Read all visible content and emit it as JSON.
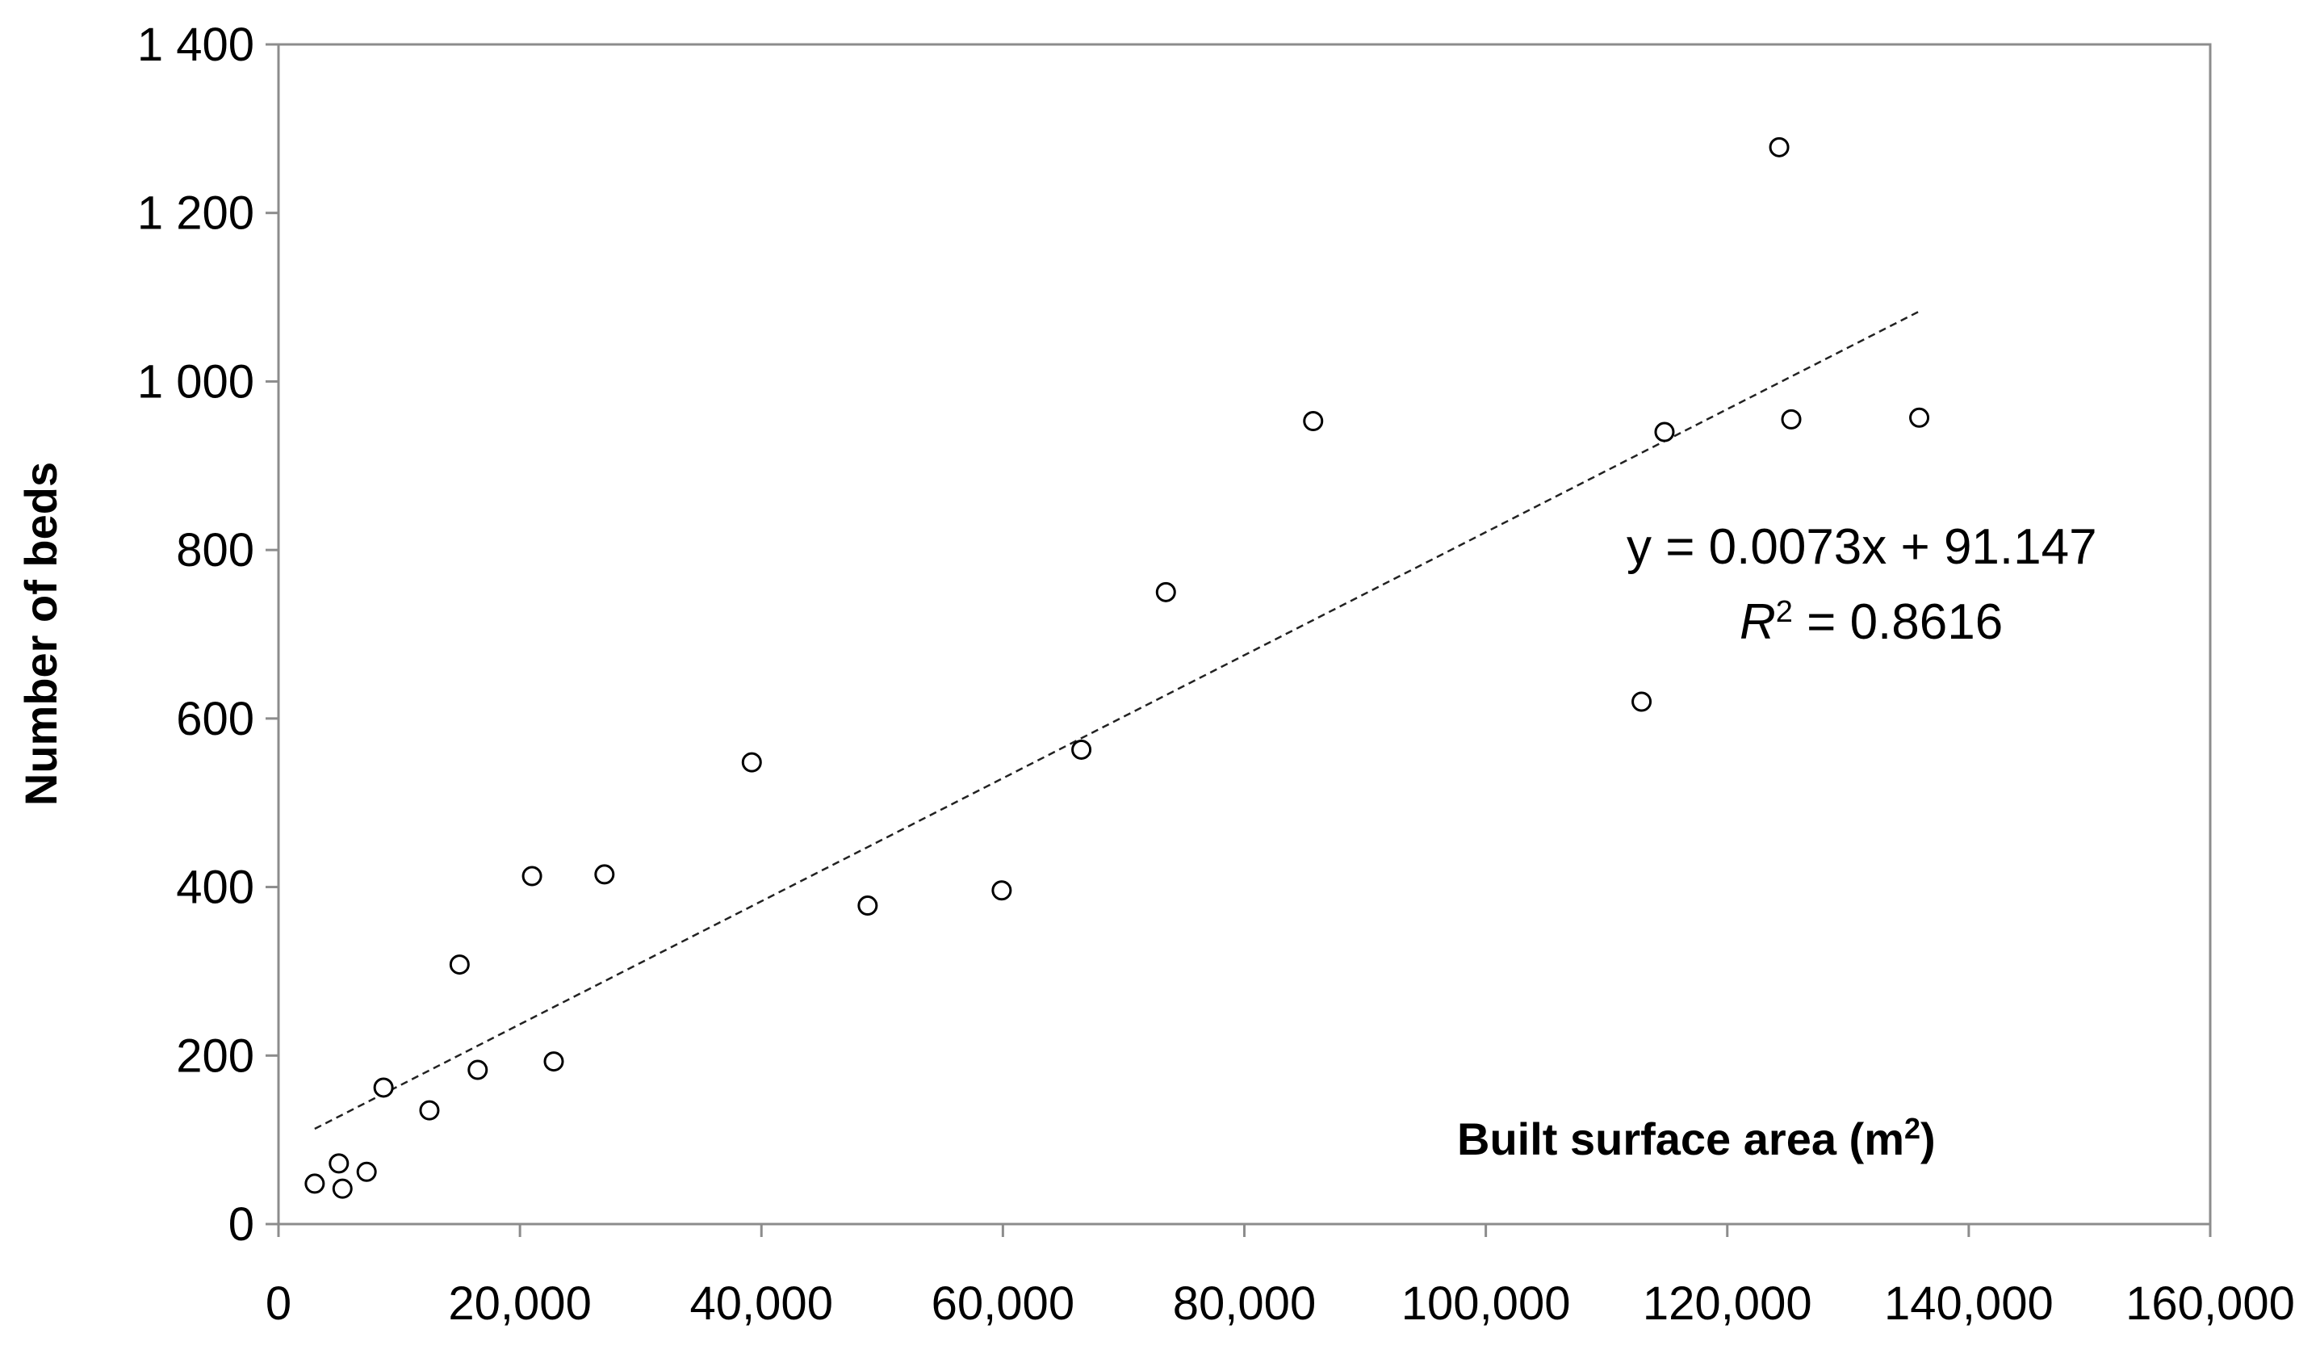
{
  "chart_data": {
    "type": "scatter",
    "xlabel": "Built surface area (m",
    "xlabel_sup": "2",
    "xlabel_close": ")",
    "ylabel": "Number of beds",
    "xlim": [
      0,
      160000
    ],
    "ylim": [
      0,
      1400
    ],
    "x_ticks": [
      {
        "value": 0,
        "label": "0"
      },
      {
        "value": 20000,
        "label": "20,000"
      },
      {
        "value": 40000,
        "label": "40,000"
      },
      {
        "value": 60000,
        "label": "60,000"
      },
      {
        "value": 80000,
        "label": "80,000"
      },
      {
        "value": 100000,
        "label": "100,000"
      },
      {
        "value": 120000,
        "label": "120,000"
      },
      {
        "value": 140000,
        "label": "140,000"
      },
      {
        "value": 160000,
        "label": "160,000"
      }
    ],
    "y_ticks": [
      {
        "value": 0,
        "label": "0"
      },
      {
        "value": 200,
        "label": "200"
      },
      {
        "value": 400,
        "label": "400"
      },
      {
        "value": 600,
        "label": "600"
      },
      {
        "value": 800,
        "label": "800"
      },
      {
        "value": 1000,
        "label": "1 000"
      },
      {
        "value": 1200,
        "label": "1 200"
      },
      {
        "value": 1400,
        "label": "1 400"
      }
    ],
    "grid": false,
    "points": [
      {
        "x": 3000,
        "y": 48
      },
      {
        "x": 5000,
        "y": 72
      },
      {
        "x": 5300,
        "y": 42
      },
      {
        "x": 7300,
        "y": 62
      },
      {
        "x": 8700,
        "y": 162
      },
      {
        "x": 12500,
        "y": 135
      },
      {
        "x": 15000,
        "y": 308
      },
      {
        "x": 16500,
        "y": 183
      },
      {
        "x": 21000,
        "y": 413
      },
      {
        "x": 22800,
        "y": 193
      },
      {
        "x": 27000,
        "y": 415
      },
      {
        "x": 39200,
        "y": 548
      },
      {
        "x": 48800,
        "y": 378
      },
      {
        "x": 59900,
        "y": 396
      },
      {
        "x": 66500,
        "y": 563
      },
      {
        "x": 73500,
        "y": 750
      },
      {
        "x": 85700,
        "y": 953
      },
      {
        "x": 112900,
        "y": 620
      },
      {
        "x": 114800,
        "y": 940
      },
      {
        "x": 124300,
        "y": 1278
      },
      {
        "x": 125300,
        "y": 955
      },
      {
        "x": 135900,
        "y": 957
      }
    ],
    "trendline": {
      "type": "linear",
      "slope": 0.0073,
      "intercept": 91.147,
      "x_range": [
        3000,
        136000
      ],
      "style": "dashed",
      "equation_label": "y = 0.0073x + 91.147",
      "r2_label_prefix": "R",
      "r2_label_sup": "2",
      "r2_label_value": " = 0.8616"
    }
  }
}
